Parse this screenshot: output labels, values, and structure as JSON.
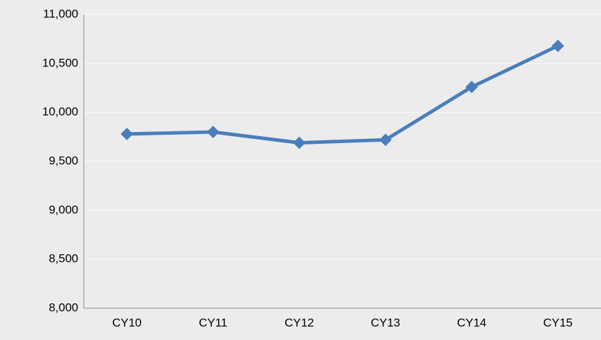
{
  "chart_data": {
    "type": "line",
    "categories": [
      "CY10",
      "CY11",
      "CY12",
      "CY13",
      "CY14",
      "CY15"
    ],
    "values": [
      9780,
      9800,
      9690,
      9720,
      10260,
      10680
    ],
    "color": "#4a7ebb",
    "ylim": [
      8000,
      11000
    ],
    "yticks": [
      {
        "value": 8000,
        "label": "8,000"
      },
      {
        "value": 8500,
        "label": "8,500"
      },
      {
        "value": 9000,
        "label": "9,000"
      },
      {
        "value": 9500,
        "label": "9,500"
      },
      {
        "value": 10000,
        "label": "10,000"
      },
      {
        "value": 10500,
        "label": "10,500"
      },
      {
        "value": 11000,
        "label": "11,000"
      }
    ],
    "grid": true
  }
}
